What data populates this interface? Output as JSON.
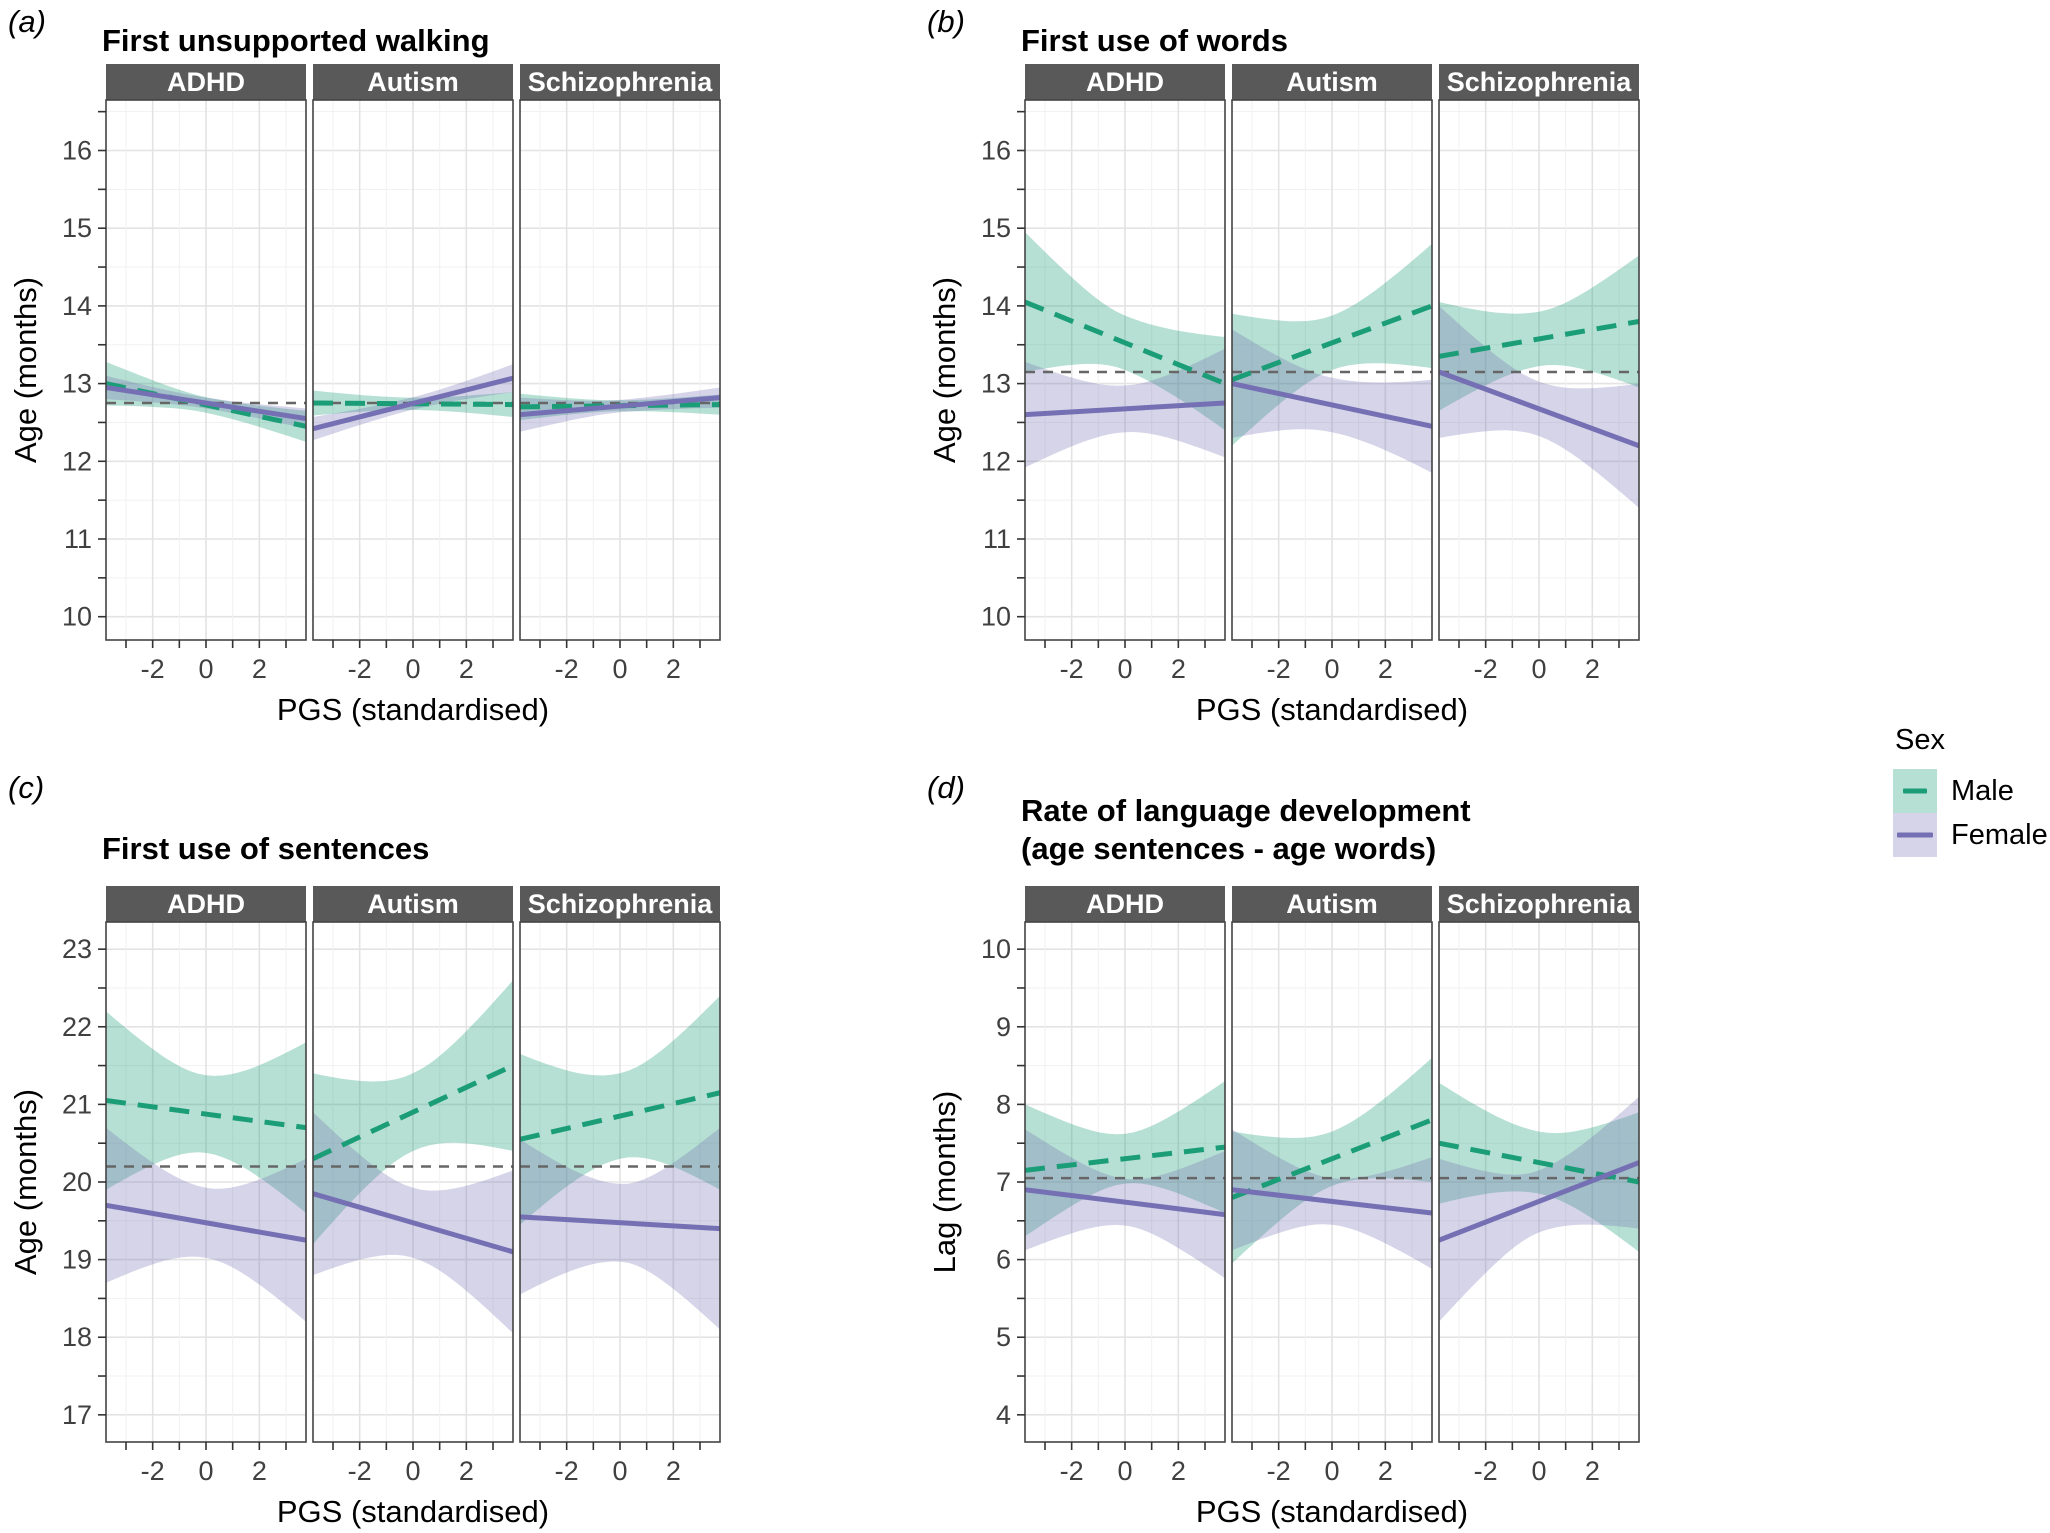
{
  "legend": {
    "title": "Sex",
    "items": [
      {
        "label": "Male",
        "line_color": "#1b9e77",
        "band_color": "rgba(27,158,119,0.32)",
        "dashed": true,
        "key_width": 24
      },
      {
        "label": "Female",
        "line_color": "#7570b3",
        "band_color": "rgba(117,112,179,0.30)",
        "dashed": false,
        "key_width": 36
      }
    ]
  },
  "style_colors": {
    "strip_bg": "#595959",
    "strip_text": "#ffffff",
    "panel_border": "#444444",
    "grid_major": "#e3e3e3",
    "grid_minor": "#f1f1f1",
    "ref_line": "#666666",
    "tick_text": "#404040"
  },
  "chart_data": [
    {
      "id": "a",
      "type": "line",
      "label": "(a)",
      "title": "First unsupported walking",
      "ylabel": "Age (months)",
      "xlabel": "PGS (standardised)",
      "ylim": [
        9.7,
        16.65
      ],
      "yticks": [
        10,
        11,
        12,
        13,
        14,
        15,
        16
      ],
      "xlim": [
        -3.75,
        3.75
      ],
      "xticks": [
        -2,
        0,
        2
      ],
      "xticks_minor": [
        -3,
        -1,
        1,
        3
      ],
      "ref_line": 12.75,
      "facets": [
        {
          "name": "ADHD",
          "male": {
            "y": [
              13.0,
              12.45
            ],
            "band": [
              0.28,
              0.1,
              0.2
            ]
          },
          "female": {
            "y": [
              12.95,
              12.55
            ],
            "band": [
              0.15,
              0.07,
              0.13
            ]
          }
        },
        {
          "name": "Autism",
          "male": {
            "y": [
              12.75,
              12.73
            ],
            "band": [
              0.16,
              0.08,
              0.16
            ]
          },
          "female": {
            "y": [
              12.42,
              13.07
            ],
            "band": [
              0.15,
              0.08,
              0.18
            ]
          }
        },
        {
          "name": "Schizophrenia",
          "male": {
            "y": [
              12.7,
              12.73
            ],
            "band": [
              0.17,
              0.07,
              0.13
            ]
          },
          "female": {
            "y": [
              12.6,
              12.82
            ],
            "band": [
              0.22,
              0.08,
              0.13
            ]
          }
        }
      ]
    },
    {
      "id": "b",
      "type": "line",
      "label": "(b)",
      "title": "First use of words",
      "ylabel": "Age (months)",
      "xlabel": "PGS (standardised)",
      "ylim": [
        9.7,
        16.65
      ],
      "yticks": [
        10,
        11,
        12,
        13,
        14,
        15,
        16
      ],
      "xlim": [
        -3.75,
        3.75
      ],
      "xticks": [
        -2,
        0,
        2
      ],
      "xticks_minor": [
        -3,
        -1,
        1,
        3
      ],
      "ref_line": 13.15,
      "facets": [
        {
          "name": "ADHD",
          "male": {
            "y": [
              14.05,
              13.0
            ],
            "band": [
              0.9,
              0.35,
              0.6
            ]
          },
          "female": {
            "y": [
              12.6,
              12.75
            ],
            "band": [
              0.68,
              0.3,
              0.7
            ]
          }
        },
        {
          "name": "Autism",
          "male": {
            "y": [
              13.05,
              14.0
            ],
            "band": [
              0.85,
              0.35,
              0.8
            ]
          },
          "female": {
            "y": [
              13.0,
              12.45
            ],
            "band": [
              0.7,
              0.35,
              0.6
            ]
          }
        },
        {
          "name": "Schizophrenia",
          "male": {
            "y": [
              13.35,
              13.8
            ],
            "band": [
              0.7,
              0.35,
              0.85
            ]
          },
          "female": {
            "y": [
              13.15,
              12.2
            ],
            "band": [
              0.85,
              0.35,
              0.8
            ]
          }
        }
      ]
    },
    {
      "id": "c",
      "type": "line",
      "label": "(c)",
      "title": "First use of sentences",
      "ylabel": "Age (months)",
      "xlabel": "PGS (standardised)",
      "ylim": [
        16.65,
        23.35
      ],
      "yticks": [
        17,
        18,
        19,
        20,
        21,
        22,
        23
      ],
      "xlim": [
        -3.75,
        3.75
      ],
      "xticks": [
        -2,
        0,
        2
      ],
      "xticks_minor": [
        -3,
        -1,
        1,
        3
      ],
      "ref_line": 20.2,
      "facets": [
        {
          "name": "ADHD",
          "male": {
            "y": [
              21.05,
              20.7
            ],
            "band": [
              1.15,
              0.5,
              1.1
            ]
          },
          "female": {
            "y": [
              19.7,
              19.25
            ],
            "band": [
              1.0,
              0.45,
              1.05
            ]
          }
        },
        {
          "name": "Autism",
          "male": {
            "y": [
              20.3,
              21.5
            ],
            "band": [
              1.1,
              0.5,
              1.1
            ]
          },
          "female": {
            "y": [
              19.85,
              19.1
            ],
            "band": [
              1.05,
              0.45,
              1.05
            ]
          }
        },
        {
          "name": "Schizophrenia",
          "male": {
            "y": [
              20.55,
              21.15
            ],
            "band": [
              1.1,
              0.55,
              1.25
            ]
          },
          "female": {
            "y": [
              19.55,
              19.4
            ],
            "band": [
              1.0,
              0.5,
              1.3
            ]
          }
        }
      ]
    },
    {
      "id": "d",
      "type": "line",
      "label": "(d)",
      "title": "Rate of language development",
      "title2": "(age sentences - age words)",
      "ylabel": "Lag (months)",
      "xlabel": "PGS (standardised)",
      "ylim": [
        3.65,
        10.35
      ],
      "yticks": [
        4,
        5,
        6,
        7,
        8,
        9,
        10
      ],
      "xlim": [
        -3.75,
        3.75
      ],
      "xticks": [
        -2,
        0,
        2
      ],
      "xticks_minor": [
        -3,
        -1,
        1,
        3
      ],
      "ref_line": 7.05,
      "facets": [
        {
          "name": "ADHD",
          "male": {
            "y": [
              7.15,
              7.45
            ],
            "band": [
              0.85,
              0.32,
              0.85
            ]
          },
          "female": {
            "y": [
              6.9,
              6.58
            ],
            "band": [
              0.78,
              0.3,
              0.82
            ]
          }
        },
        {
          "name": "Autism",
          "male": {
            "y": [
              6.8,
              7.8
            ],
            "band": [
              0.85,
              0.35,
              0.8
            ]
          },
          "female": {
            "y": [
              6.9,
              6.6
            ],
            "band": [
              0.78,
              0.3,
              0.72
            ]
          }
        },
        {
          "name": "Schizophrenia",
          "male": {
            "y": [
              7.5,
              7.0
            ],
            "band": [
              0.78,
              0.4,
              0.9
            ]
          },
          "female": {
            "y": [
              6.25,
              7.25
            ],
            "band": [
              1.05,
              0.4,
              0.85
            ]
          }
        }
      ]
    }
  ]
}
